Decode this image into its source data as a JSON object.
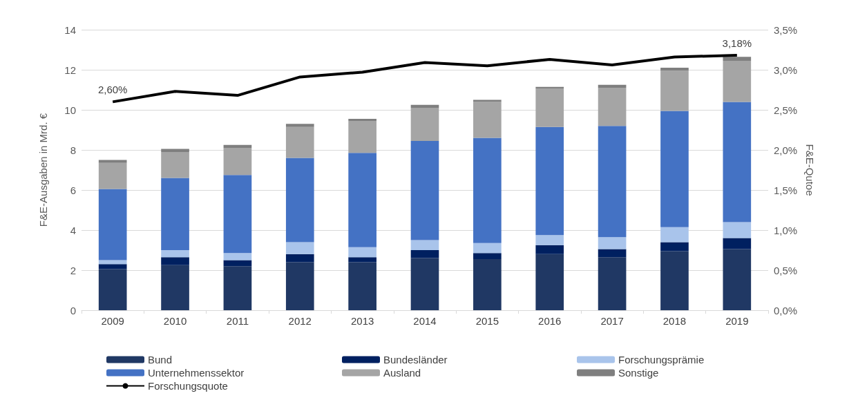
{
  "chart_data": {
    "type": "bar",
    "stacked": true,
    "ylabel": "F&E-Ausgaben in Mrd. €",
    "y2label": "F&E-Qutoe",
    "categories": [
      "2009",
      "2010",
      "2011",
      "2012",
      "2013",
      "2014",
      "2015",
      "2016",
      "2017",
      "2018",
      "2019"
    ],
    "series": [
      {
        "name": "Bund",
        "color": "#203864",
        "values": [
          2.05,
          2.25,
          2.2,
          2.4,
          2.4,
          2.6,
          2.55,
          2.8,
          2.65,
          2.95,
          3.05
        ]
      },
      {
        "name": "Bundesländer",
        "color": "#002060",
        "values": [
          0.25,
          0.4,
          0.3,
          0.4,
          0.25,
          0.4,
          0.3,
          0.45,
          0.4,
          0.45,
          0.55
        ]
      },
      {
        "name": "Forschungsprämie",
        "color": "#a9c4eb",
        "values": [
          0.2,
          0.35,
          0.35,
          0.6,
          0.5,
          0.5,
          0.5,
          0.5,
          0.6,
          0.75,
          0.8
        ]
      },
      {
        "name": "Unternehmenssektor",
        "color": "#4472c4",
        "values": [
          3.55,
          3.6,
          3.9,
          4.2,
          4.7,
          4.95,
          5.25,
          5.4,
          5.55,
          5.8,
          6.0
        ]
      },
      {
        "name": "Ausland",
        "color": "#a5a5a5",
        "values": [
          1.3,
          1.3,
          1.35,
          1.55,
          1.6,
          1.65,
          1.8,
          1.9,
          1.9,
          2.0,
          2.05
        ]
      },
      {
        "name": "Sonstige",
        "color": "#7f7f7f",
        "values": [
          0.15,
          0.15,
          0.15,
          0.15,
          0.1,
          0.15,
          0.1,
          0.1,
          0.15,
          0.15,
          0.2
        ]
      },
      {
        "name": "Forschungsquote",
        "type": "line",
        "axis": "y2",
        "color": "#000000",
        "marker": "none",
        "values": [
          2.6,
          2.73,
          2.68,
          2.91,
          2.97,
          3.09,
          3.05,
          3.13,
          3.06,
          3.16,
          3.18
        ],
        "value_labels": [
          "2,60%",
          null,
          null,
          null,
          null,
          null,
          null,
          null,
          null,
          null,
          "3,18%"
        ]
      }
    ],
    "ylim": [
      0,
      14
    ],
    "yticks": [
      0,
      2,
      4,
      6,
      8,
      10,
      12,
      14
    ],
    "y2lim": [
      0,
      3.5
    ],
    "y2ticks": [
      {
        "value": 0,
        "label": "0,0%"
      },
      {
        "value": 0.5,
        "label": "0,5%"
      },
      {
        "value": 1,
        "label": "1,0%"
      },
      {
        "value": 1.5,
        "label": "1,5%"
      },
      {
        "value": 2,
        "label": "2,0%"
      },
      {
        "value": 2.5,
        "label": "2,5%"
      },
      {
        "value": 3,
        "label": "3,0%"
      },
      {
        "value": 3.5,
        "label": "3,5%"
      }
    ],
    "grid": "y",
    "legend": "bottom"
  }
}
